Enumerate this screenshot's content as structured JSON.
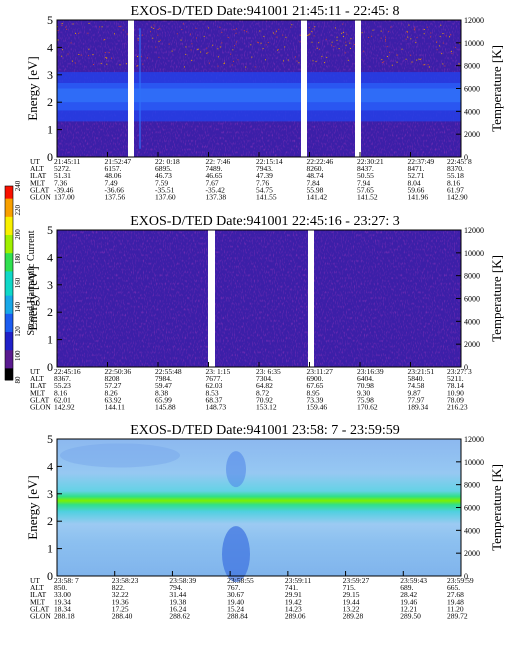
{
  "chart_data": [
    {
      "type": "heatmap",
      "title": "EXOS-D/TED   Date:941001  21:45:11 - 22:45: 8",
      "ylabel": "Energy [eV]",
      "y2label": "Temperature [K]",
      "ylim": [
        0,
        5
      ],
      "y2lim": [
        0,
        12000
      ],
      "yticks": [
        "0",
        "1",
        "2",
        "3",
        "4",
        "5"
      ],
      "y2ticks": [
        "0",
        "2000",
        "4000",
        "6000",
        "8000",
        "10000",
        "12000"
      ],
      "data_gaps_ut": [
        "21:53:00-21:53:20",
        "22:22:00-22:22:50"
      ],
      "band_center_ev": 2.3,
      "row_labels": [
        "UT",
        "ALT",
        "ILAT",
        "MLT",
        "GLAT",
        "GLON"
      ],
      "columns": [
        [
          "21:45:11",
          "5272.",
          "51.31",
          "7.36",
          "-39.46",
          "137.00"
        ],
        [
          "21:52:47",
          "6157.",
          "48.06",
          "7.49",
          "-36.66",
          "137.56"
        ],
        [
          "22: 0:18",
          "6895.",
          "46.73",
          "7.59",
          "-35.51",
          "137.60"
        ],
        [
          "22: 7:46",
          "7489.",
          "46.65",
          "7.67",
          "-35.42",
          "137.38"
        ],
        [
          "22:15:14",
          "7943.",
          "47.39",
          "7.76",
          "54.75",
          "141.55"
        ],
        [
          "22:22:46",
          "8260.",
          "48.74",
          "7.84",
          "55.98",
          "141.42"
        ],
        [
          "22:30:21",
          "8437.",
          "50.55",
          "7.94",
          "57.65",
          "141.52"
        ],
        [
          "22:37:49",
          "8471.",
          "52.71",
          "8.04",
          "59.66",
          "141.96"
        ],
        [
          "22:45: 8",
          "8370.",
          "55.18",
          "8.16",
          "61.97",
          "142.90"
        ]
      ]
    },
    {
      "type": "heatmap",
      "title": "EXOS-D/TED   Date:941001  22:45:16 - 23:27: 3",
      "ylabel": "Energy [eV]",
      "y2label": "Temperature [K]",
      "ylim": [
        0,
        5
      ],
      "y2lim": [
        0,
        12000
      ],
      "yticks": [
        "0",
        "1",
        "2",
        "3",
        "4",
        "5"
      ],
      "y2ticks": [
        "0",
        "2000",
        "4000",
        "6000",
        "8000",
        "10000",
        "12000"
      ],
      "data_gaps_ut": [
        "22:58:40-22:59:20",
        "23:10:40-23:11:20"
      ],
      "row_labels": [
        "UT",
        "ALT",
        "ILAT",
        "MLT",
        "GLAT",
        "GLON"
      ],
      "columns": [
        [
          "22:45:16",
          "8367.",
          "55.23",
          "8.16",
          "62.01",
          "142.92"
        ],
        [
          "22:50:36",
          "8208",
          "57.27",
          "8.26",
          "63.92",
          "144.11"
        ],
        [
          "22:55:48",
          "7984.",
          "59.47",
          "8.38",
          "65.99",
          "145.88"
        ],
        [
          "23: 1:15",
          "7677.",
          "62.03",
          "8.53",
          "68.37",
          "148.73"
        ],
        [
          "23: 6:35",
          "7304.",
          "64.82",
          "8.72",
          "70.92",
          "153.12"
        ],
        [
          "23:11:27",
          "6900.",
          "67.65",
          "8.95",
          "73.39",
          "159.46"
        ],
        [
          "23:16:39",
          "6404.",
          "70.98",
          "9.30",
          "75.98",
          "170.62"
        ],
        [
          "23:21:51",
          "5840.",
          "74.58",
          "9.87",
          "77.97",
          "189.34"
        ],
        [
          "23:27: 3",
          "5211.",
          "78.14",
          "10.90",
          "78.09",
          "216.23"
        ]
      ]
    },
    {
      "type": "heatmap",
      "title": "EXOS-D/TED   Date:941001  23:58: 7 - 23:59:59",
      "ylabel": "Energy [eV]",
      "y2label": "Temperature [K]",
      "ylim": [
        0,
        5
      ],
      "y2lim": [
        0,
        12000
      ],
      "yticks": [
        "0",
        "1",
        "2",
        "3",
        "4",
        "5"
      ],
      "y2ticks": [
        "0",
        "2000",
        "4000",
        "6000",
        "8000",
        "10000",
        "12000"
      ],
      "band_center_ev": 2.8,
      "row_labels": [
        "UT",
        "ALT",
        "ILAT",
        "MLT",
        "GLAT",
        "GLON"
      ],
      "columns": [
        [
          "23:58: 7",
          "850.",
          "33.00",
          "19.34",
          "18.34",
          "288.18"
        ],
        [
          "23:58:23",
          "822.",
          "32.22",
          "19.36",
          "17.25",
          "288.40"
        ],
        [
          "23:58:39",
          "794.",
          "31.44",
          "19.38",
          "16.24",
          "288.62"
        ],
        [
          "23:58:55",
          "767.",
          "30.67",
          "19.40",
          "15.24",
          "288.84"
        ],
        [
          "23:59:11",
          "741.",
          "29.91",
          "19.42",
          "14.23",
          "289.06"
        ],
        [
          "23:59:27",
          "715.",
          "29.15",
          "19.44",
          "13.22",
          "289.28"
        ],
        [
          "23:59:43",
          "689.",
          "28.42",
          "19.46",
          "12.21",
          "289.50"
        ],
        [
          "23:59:59",
          "665.",
          "27.68",
          "19.48",
          "11.20",
          "289.72"
        ]
      ]
    }
  ],
  "colorbar": {
    "label": "Second Harmonic Current",
    "ticks": [
      "80",
      "100",
      "120",
      "140",
      "160",
      "180",
      "200",
      "220",
      "240"
    ],
    "range": [
      80,
      240
    ],
    "colors": [
      "#000000",
      "#5a1a90",
      "#2020c8",
      "#1c5cf0",
      "#18a8e8",
      "#10d8c8",
      "#30e050",
      "#a0f000",
      "#f8f000",
      "#f8a000",
      "#f81000"
    ]
  }
}
